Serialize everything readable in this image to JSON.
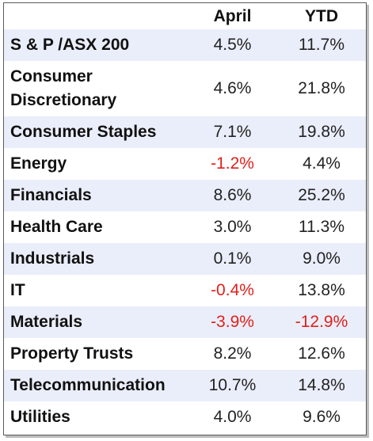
{
  "chart_data": {
    "type": "table",
    "columns": [
      "April",
      "YTD"
    ],
    "rows": [
      {
        "label": "S & P /ASX 200",
        "april": "4.5%",
        "ytd": "11.7%"
      },
      {
        "label": "Consumer Discretionary",
        "label_lines": [
          "Consumer",
          "Discretionary"
        ],
        "april": "4.6%",
        "ytd": "21.8%"
      },
      {
        "label": "Consumer Staples",
        "april": "7.1%",
        "ytd": "19.8%"
      },
      {
        "label": "Energy",
        "april": "-1.2%",
        "ytd": "4.4%"
      },
      {
        "label": "Financials",
        "april": "8.6%",
        "ytd": "25.2%"
      },
      {
        "label": "Health Care",
        "april": "3.0%",
        "ytd": "11.3%"
      },
      {
        "label": "Industrials",
        "april": "0.1%",
        "ytd": "9.0%"
      },
      {
        "label": "IT",
        "april": "-0.4%",
        "ytd": "13.8%"
      },
      {
        "label": "Materials",
        "april": "-3.9%",
        "ytd": "-12.9%"
      },
      {
        "label": "Property Trusts",
        "april": "8.2%",
        "ytd": "12.6%"
      },
      {
        "label": "Telecommunication",
        "april": "10.7%",
        "ytd": "14.8%"
      },
      {
        "label": "Utilities",
        "april": "4.0%",
        "ytd": "9.6%"
      }
    ],
    "colors": {
      "negative": "#e0201a",
      "shaded_row": "#eaeefa",
      "text": "#111111"
    }
  }
}
